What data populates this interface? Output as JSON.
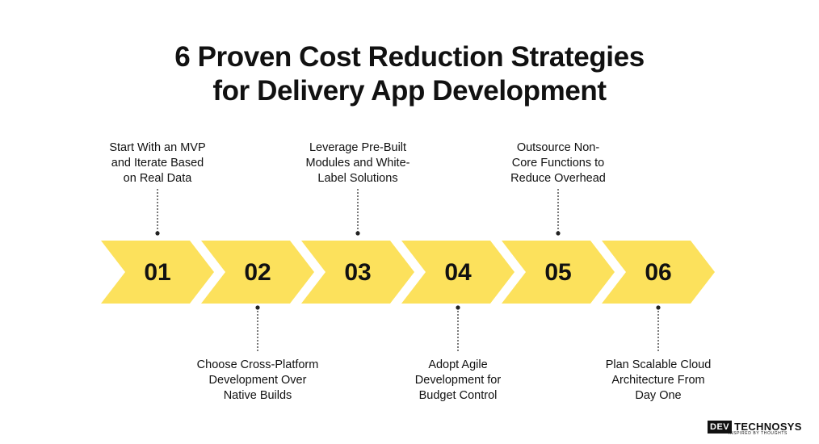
{
  "title": {
    "line1": "6 Proven Cost Reduction Strategies",
    "line2": "for Delivery App Development"
  },
  "colors": {
    "chevron": "#FCE15C",
    "text": "#111111",
    "connector": "#222222"
  },
  "steps": [
    {
      "number": "01",
      "position": "top",
      "lines": [
        "Start With an MVP",
        "and Iterate Based",
        "on Real Data"
      ]
    },
    {
      "number": "02",
      "position": "bottom",
      "lines": [
        "Choose Cross-Platform",
        "Development Over",
        "Native Builds"
      ]
    },
    {
      "number": "03",
      "position": "top",
      "lines": [
        "Leverage Pre-Built",
        "Modules and White-",
        "Label Solutions"
      ]
    },
    {
      "number": "04",
      "position": "bottom",
      "lines": [
        "Adopt Agile",
        "Development for",
        "Budget Control"
      ]
    },
    {
      "number": "05",
      "position": "top",
      "lines": [
        "Outsource Non-",
        "Core Functions to",
        "Reduce Overhead"
      ]
    },
    {
      "number": "06",
      "position": "bottom",
      "lines": [
        "Plan Scalable Cloud",
        "Architecture From",
        "Day One"
      ]
    }
  ],
  "logo": {
    "mark": "DEV",
    "name": "TECHNOSYS",
    "tagline": "INSPIRED BY THOUGHTS"
  }
}
